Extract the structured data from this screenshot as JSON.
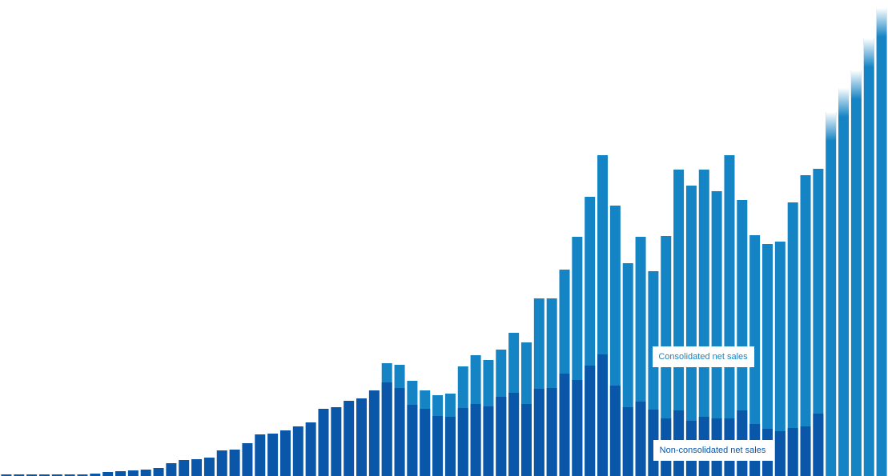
{
  "chart_data": {
    "type": "bar",
    "series": [
      {
        "name": "Consolidated net sales",
        "color": "#1584c4",
        "values": [
          null,
          null,
          null,
          null,
          null,
          null,
          null,
          null,
          null,
          null,
          null,
          null,
          null,
          null,
          null,
          null,
          null,
          null,
          null,
          null,
          null,
          null,
          null,
          null,
          null,
          null,
          null,
          null,
          null,
          null,
          141,
          139,
          119,
          107,
          101,
          103,
          137,
          151,
          145,
          158,
          179,
          167,
          222,
          222,
          258,
          299,
          349,
          401,
          338,
          266,
          299,
          256,
          300,
          383,
          363,
          383,
          356,
          401,
          345,
          301,
          290,
          293,
          342,
          376,
          384,
          455,
          485,
          507,
          547,
          585
        ]
      },
      {
        "name": "Non-consolidated net sales",
        "color": "#0a56a8",
        "values": [
          2,
          2,
          2,
          2,
          2,
          2,
          2,
          3,
          5,
          6,
          7,
          8,
          10,
          16,
          20,
          21,
          23,
          32,
          33,
          41,
          52,
          53,
          57,
          62,
          67,
          84,
          86,
          94,
          97,
          107,
          117,
          110,
          89,
          84,
          75,
          74,
          85,
          90,
          87,
          99,
          104,
          90,
          109,
          110,
          128,
          120,
          138,
          152,
          113,
          86,
          93,
          83,
          72,
          82,
          69,
          74,
          72,
          72,
          82,
          65,
          59,
          56,
          60,
          62,
          78,
          null,
          null,
          null,
          null,
          null
        ]
      }
    ]
  }
}
